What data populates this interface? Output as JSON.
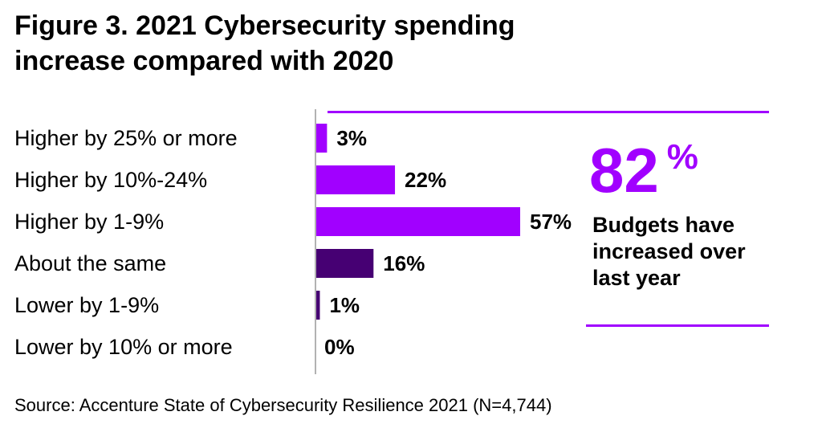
{
  "figure": {
    "title": "Figure 3. 2021 Cybersecurity spending increase compared with 2020"
  },
  "callout": {
    "number": "82",
    "percent_sign": "%",
    "label": "Budgets have increased over last year"
  },
  "source": "Source: Accenture State of Cybersecurity Resilience 2021 (N=4,744)",
  "colors": {
    "accent": "#a100ff",
    "bar_purple": "#a100ff",
    "bar_dark": "#460073",
    "axis": "#999999"
  },
  "chart_data": {
    "type": "bar",
    "orientation": "horizontal",
    "title": "Figure 3. 2021 Cybersecurity spending increase compared with 2020",
    "categories": [
      "Higher by 25% or more",
      "Higher by 10%-24%",
      "Higher by 1-9%",
      "About the same",
      "Lower by 1-9%",
      "Lower by 10% or more"
    ],
    "values": [
      3,
      22,
      57,
      16,
      1,
      0
    ],
    "value_labels": [
      "3%",
      "22%",
      "57%",
      "16%",
      "1%",
      "0%"
    ],
    "bar_colors": [
      "#a100ff",
      "#a100ff",
      "#a100ff",
      "#460073",
      "#460073",
      "#460073"
    ],
    "xlabel": "",
    "ylabel": "",
    "xlim": [
      0,
      57
    ],
    "grid": false,
    "legend": "none"
  }
}
